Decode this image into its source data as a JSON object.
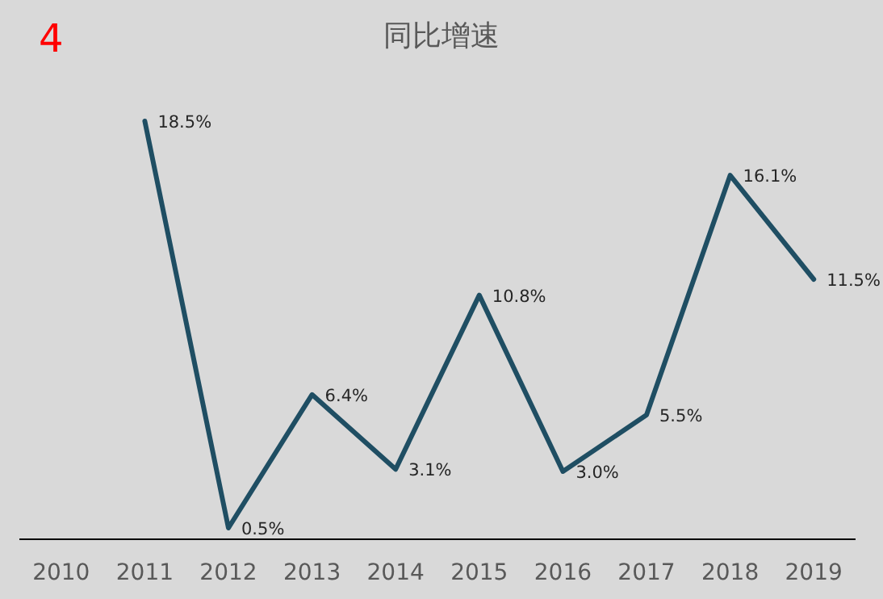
{
  "chart_data": {
    "type": "line",
    "title": "同比增速",
    "annotations": [
      "4"
    ],
    "categories": [
      "2010",
      "2011",
      "2012",
      "2013",
      "2014",
      "2015",
      "2016",
      "2017",
      "2018",
      "2019"
    ],
    "series": [
      {
        "color": "#1f4e63",
        "values": [
          null,
          18.5,
          0.5,
          6.4,
          3.1,
          10.8,
          3.0,
          5.5,
          16.1,
          11.5
        ],
        "value_labels": [
          null,
          "18.5%",
          "0.5%",
          "6.4%",
          "3.1%",
          "10.8%",
          "3.0%",
          "5.5%",
          "16.1%",
          "11.5%"
        ]
      }
    ]
  }
}
